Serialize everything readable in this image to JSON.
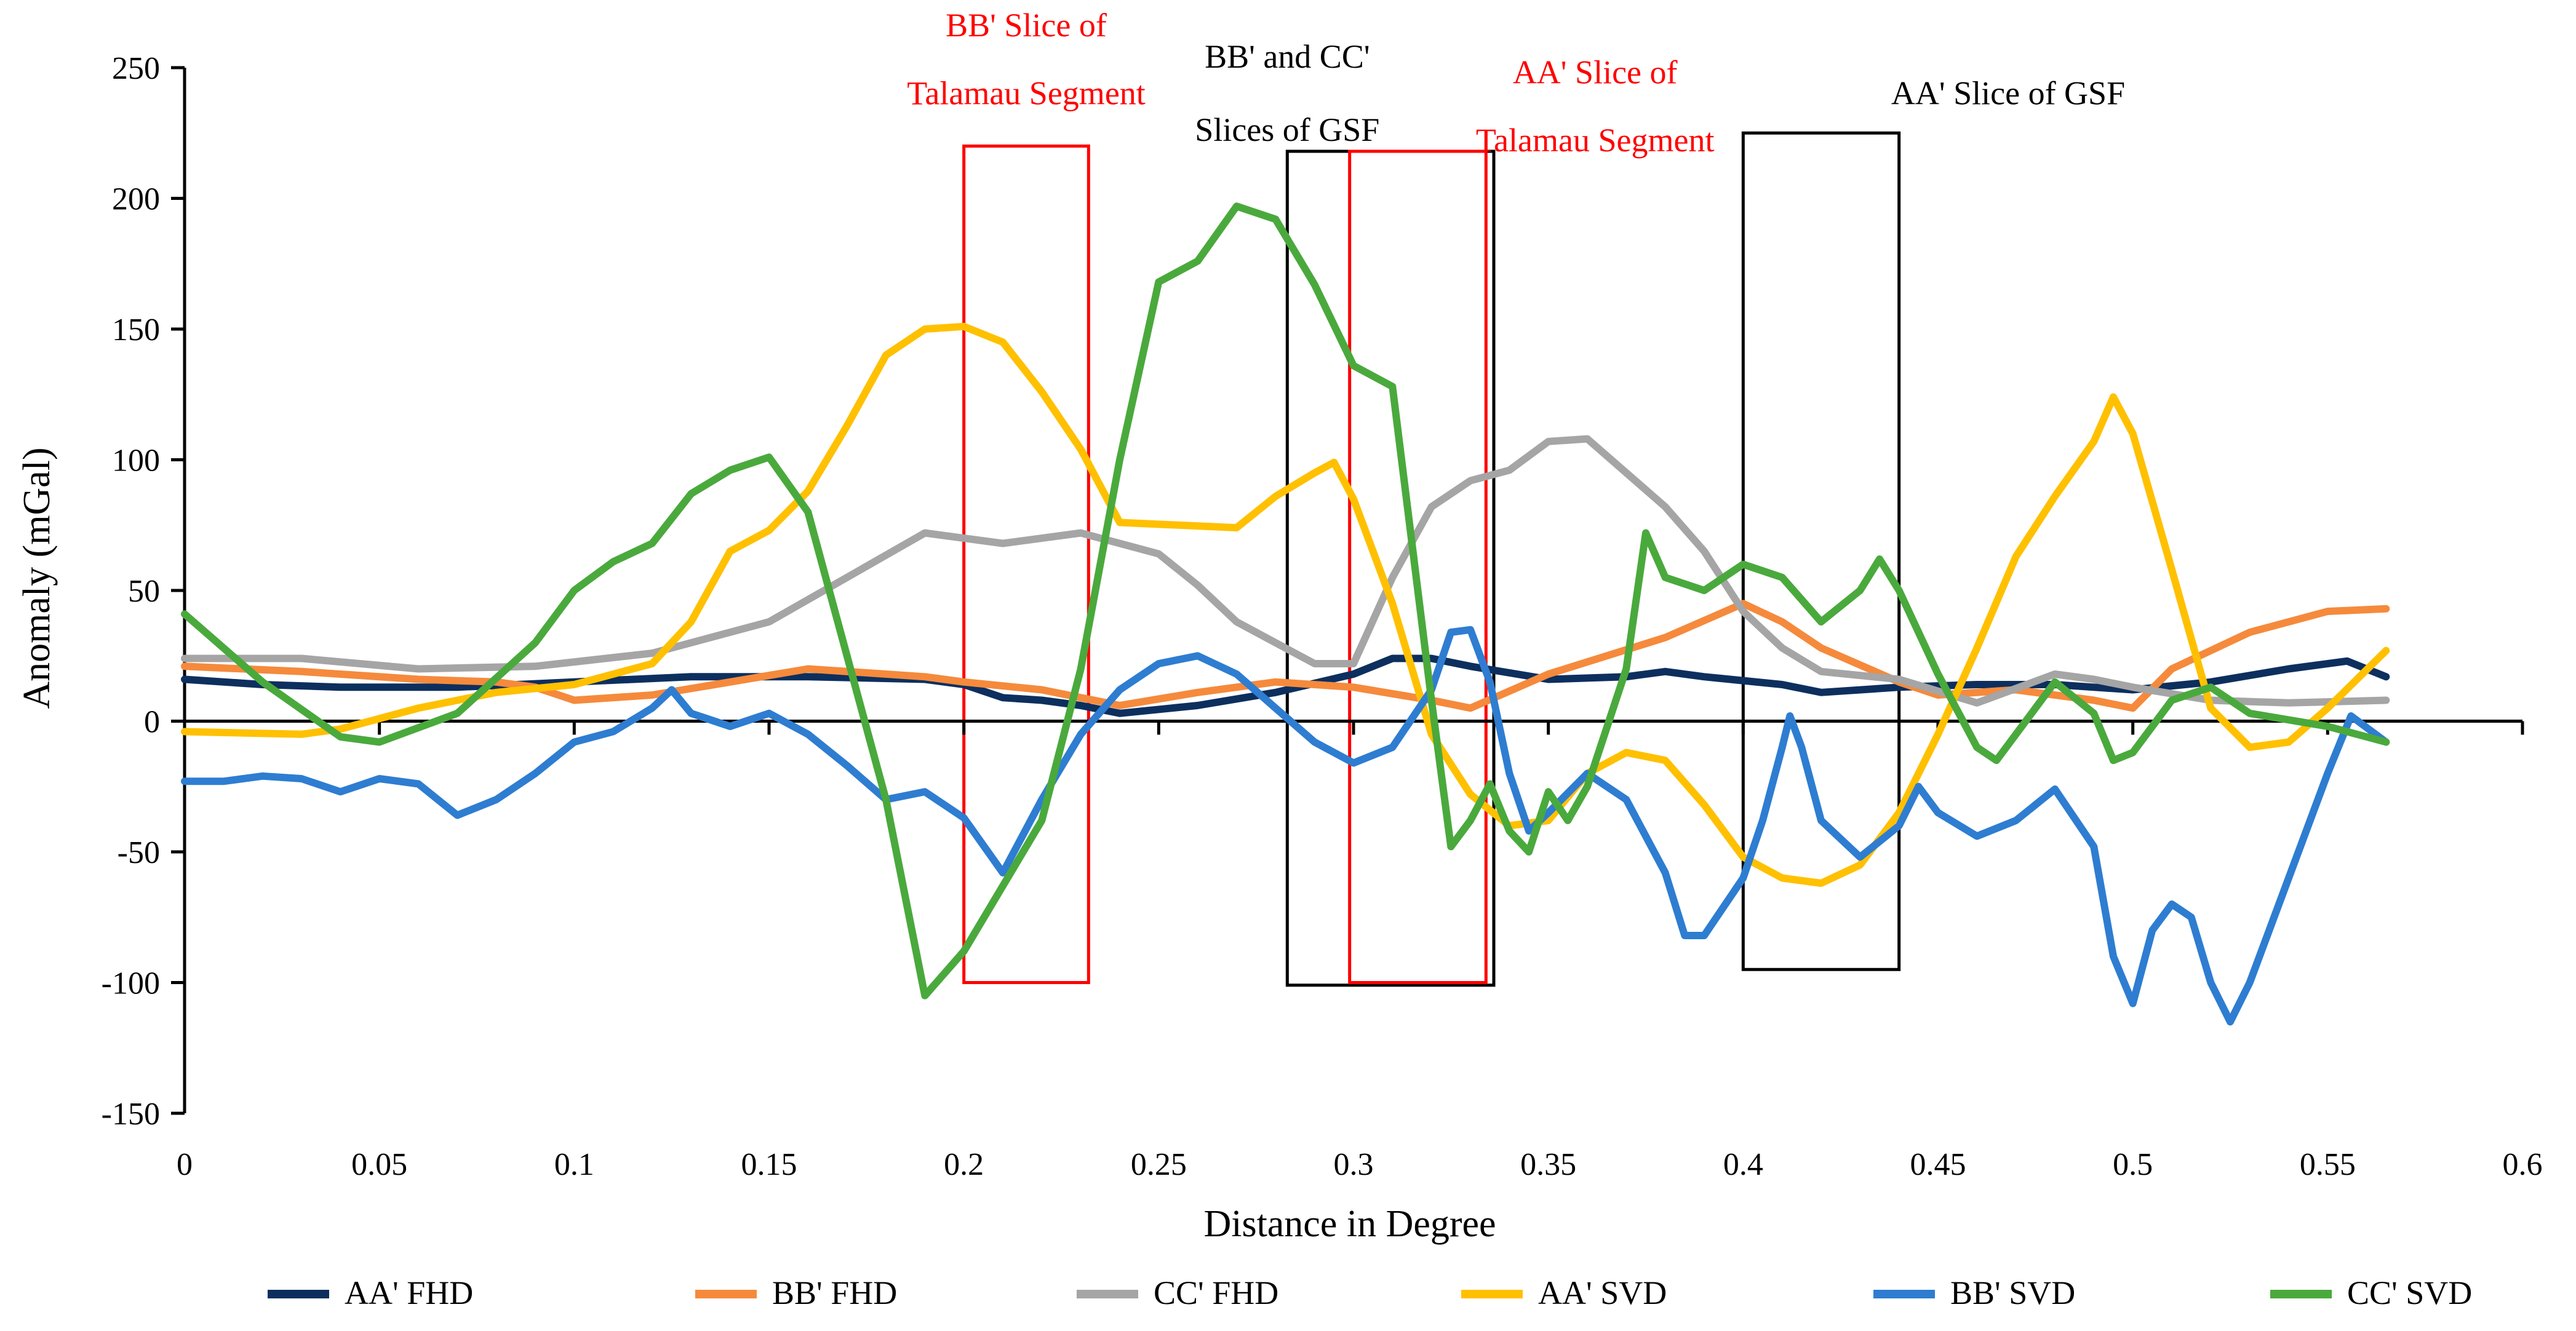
{
  "chart_data": {
    "type": "line",
    "title": "",
    "xlabel": "Distance in Degree",
    "ylabel": "Anomaly (mGal)",
    "xlim": [
      0,
      0.6
    ],
    "ylim": [
      -150,
      250
    ],
    "x_ticks": [
      0,
      0.05,
      0.1,
      0.15,
      0.2,
      0.25,
      0.3,
      0.35,
      0.4,
      0.45,
      0.5,
      0.55,
      0.6
    ],
    "x_tick_labels": [
      "0",
      "0.05",
      "0.1",
      "0.15",
      "0.2",
      "0.25",
      "0.3",
      "0.35",
      "0.4",
      "0.45",
      "0.5",
      "0.55",
      "0.6"
    ],
    "y_ticks": [
      -150,
      -100,
      -50,
      0,
      50,
      100,
      150,
      200,
      250
    ],
    "y_tick_labels": [
      "-150",
      "-100",
      "-50",
      "0",
      "50",
      "100",
      "150",
      "200",
      "250"
    ],
    "grid": false,
    "legend_position": "bottom",
    "series": [
      {
        "name": "AA' FHD",
        "color": "#0d2f5e",
        "points": [
          [
            0,
            16
          ],
          [
            0.02,
            14
          ],
          [
            0.04,
            13
          ],
          [
            0.07,
            13
          ],
          [
            0.1,
            15
          ],
          [
            0.13,
            17
          ],
          [
            0.16,
            17
          ],
          [
            0.19,
            16
          ],
          [
            0.2,
            14
          ],
          [
            0.21,
            9
          ],
          [
            0.22,
            8
          ],
          [
            0.23,
            6
          ],
          [
            0.24,
            3
          ],
          [
            0.26,
            6
          ],
          [
            0.28,
            11
          ],
          [
            0.3,
            18
          ],
          [
            0.31,
            24
          ],
          [
            0.32,
            24
          ],
          [
            0.33,
            21
          ],
          [
            0.35,
            16
          ],
          [
            0.37,
            17
          ],
          [
            0.38,
            19
          ],
          [
            0.39,
            17
          ],
          [
            0.41,
            14
          ],
          [
            0.42,
            11
          ],
          [
            0.44,
            13
          ],
          [
            0.46,
            14
          ],
          [
            0.48,
            14
          ],
          [
            0.49,
            13
          ],
          [
            0.5,
            12
          ],
          [
            0.52,
            15
          ],
          [
            0.54,
            20
          ],
          [
            0.555,
            23
          ],
          [
            0.565,
            17
          ]
        ]
      },
      {
        "name": "BB' FHD",
        "color": "#f58a3c",
        "points": [
          [
            0,
            21
          ],
          [
            0.03,
            19
          ],
          [
            0.06,
            16
          ],
          [
            0.08,
            15
          ],
          [
            0.09,
            13
          ],
          [
            0.1,
            8
          ],
          [
            0.12,
            10
          ],
          [
            0.14,
            15
          ],
          [
            0.16,
            20
          ],
          [
            0.18,
            18
          ],
          [
            0.19,
            17
          ],
          [
            0.2,
            15
          ],
          [
            0.22,
            12
          ],
          [
            0.24,
            6
          ],
          [
            0.26,
            11
          ],
          [
            0.28,
            15
          ],
          [
            0.3,
            13
          ],
          [
            0.32,
            8
          ],
          [
            0.33,
            5
          ],
          [
            0.35,
            18
          ],
          [
            0.38,
            32
          ],
          [
            0.4,
            45
          ],
          [
            0.41,
            38
          ],
          [
            0.42,
            28
          ],
          [
            0.44,
            15
          ],
          [
            0.45,
            10
          ],
          [
            0.47,
            12
          ],
          [
            0.49,
            8
          ],
          [
            0.5,
            5
          ],
          [
            0.51,
            20
          ],
          [
            0.53,
            34
          ],
          [
            0.55,
            42
          ],
          [
            0.565,
            43
          ]
        ]
      },
      {
        "name": "CC' FHD",
        "color": "#a5a5a5",
        "points": [
          [
            0,
            24
          ],
          [
            0.03,
            24
          ],
          [
            0.06,
            20
          ],
          [
            0.09,
            21
          ],
          [
            0.12,
            26
          ],
          [
            0.15,
            38
          ],
          [
            0.17,
            55
          ],
          [
            0.19,
            72
          ],
          [
            0.21,
            68
          ],
          [
            0.23,
            72
          ],
          [
            0.25,
            64
          ],
          [
            0.26,
            52
          ],
          [
            0.27,
            38
          ],
          [
            0.28,
            30
          ],
          [
            0.29,
            22
          ],
          [
            0.3,
            22
          ],
          [
            0.31,
            55
          ],
          [
            0.32,
            82
          ],
          [
            0.33,
            92
          ],
          [
            0.34,
            96
          ],
          [
            0.35,
            107
          ],
          [
            0.36,
            108
          ],
          [
            0.38,
            82
          ],
          [
            0.39,
            65
          ],
          [
            0.4,
            42
          ],
          [
            0.41,
            28
          ],
          [
            0.42,
            19
          ],
          [
            0.44,
            16
          ],
          [
            0.46,
            7
          ],
          [
            0.48,
            18
          ],
          [
            0.49,
            16
          ],
          [
            0.5,
            13
          ],
          [
            0.52,
            8
          ],
          [
            0.54,
            7
          ],
          [
            0.565,
            8
          ]
        ]
      },
      {
        "name": "AA' SVD",
        "color": "#ffc000",
        "points": [
          [
            0,
            -4
          ],
          [
            0.03,
            -5
          ],
          [
            0.04,
            -3
          ],
          [
            0.06,
            5
          ],
          [
            0.08,
            11
          ],
          [
            0.1,
            14
          ],
          [
            0.12,
            22
          ],
          [
            0.13,
            38
          ],
          [
            0.14,
            65
          ],
          [
            0.15,
            73
          ],
          [
            0.16,
            88
          ],
          [
            0.17,
            113
          ],
          [
            0.18,
            140
          ],
          [
            0.19,
            150
          ],
          [
            0.2,
            151
          ],
          [
            0.21,
            145
          ],
          [
            0.22,
            126
          ],
          [
            0.23,
            104
          ],
          [
            0.24,
            76
          ],
          [
            0.27,
            74
          ],
          [
            0.28,
            86
          ],
          [
            0.29,
            95
          ],
          [
            0.295,
            99
          ],
          [
            0.3,
            85
          ],
          [
            0.31,
            45
          ],
          [
            0.32,
            -5
          ],
          [
            0.33,
            -28
          ],
          [
            0.34,
            -40
          ],
          [
            0.35,
            -38
          ],
          [
            0.36,
            -20
          ],
          [
            0.37,
            -12
          ],
          [
            0.38,
            -15
          ],
          [
            0.39,
            -32
          ],
          [
            0.4,
            -52
          ],
          [
            0.41,
            -60
          ],
          [
            0.42,
            -62
          ],
          [
            0.43,
            -55
          ],
          [
            0.44,
            -35
          ],
          [
            0.45,
            -5
          ],
          [
            0.46,
            28
          ],
          [
            0.47,
            63
          ],
          [
            0.48,
            86
          ],
          [
            0.49,
            107
          ],
          [
            0.495,
            124
          ],
          [
            0.5,
            110
          ],
          [
            0.51,
            58
          ],
          [
            0.52,
            5
          ],
          [
            0.53,
            -10
          ],
          [
            0.54,
            -8
          ],
          [
            0.55,
            5
          ],
          [
            0.565,
            27
          ]
        ]
      },
      {
        "name": "BB' SVD",
        "color": "#2e7dd1",
        "points": [
          [
            0,
            -23
          ],
          [
            0.01,
            -23
          ],
          [
            0.02,
            -21
          ],
          [
            0.03,
            -22
          ],
          [
            0.04,
            -27
          ],
          [
            0.05,
            -22
          ],
          [
            0.06,
            -24
          ],
          [
            0.07,
            -36
          ],
          [
            0.08,
            -30
          ],
          [
            0.09,
            -20
          ],
          [
            0.1,
            -8
          ],
          [
            0.11,
            -4
          ],
          [
            0.12,
            5
          ],
          [
            0.125,
            12
          ],
          [
            0.13,
            3
          ],
          [
            0.14,
            -2
          ],
          [
            0.15,
            3
          ],
          [
            0.16,
            -5
          ],
          [
            0.17,
            -17
          ],
          [
            0.18,
            -30
          ],
          [
            0.19,
            -27
          ],
          [
            0.2,
            -37
          ],
          [
            0.21,
            -58
          ],
          [
            0.22,
            -30
          ],
          [
            0.23,
            -5
          ],
          [
            0.24,
            12
          ],
          [
            0.25,
            22
          ],
          [
            0.26,
            25
          ],
          [
            0.27,
            18
          ],
          [
            0.28,
            5
          ],
          [
            0.29,
            -8
          ],
          [
            0.3,
            -16
          ],
          [
            0.31,
            -10
          ],
          [
            0.32,
            12
          ],
          [
            0.325,
            34
          ],
          [
            0.33,
            35
          ],
          [
            0.335,
            15
          ],
          [
            0.34,
            -20
          ],
          [
            0.345,
            -42
          ],
          [
            0.35,
            -35
          ],
          [
            0.36,
            -20
          ],
          [
            0.37,
            -30
          ],
          [
            0.38,
            -58
          ],
          [
            0.385,
            -82
          ],
          [
            0.39,
            -82
          ],
          [
            0.4,
            -60
          ],
          [
            0.405,
            -38
          ],
          [
            0.41,
            -10
          ],
          [
            0.412,
            2
          ],
          [
            0.415,
            -10
          ],
          [
            0.42,
            -38
          ],
          [
            0.43,
            -52
          ],
          [
            0.44,
            -40
          ],
          [
            0.445,
            -25
          ],
          [
            0.45,
            -35
          ],
          [
            0.46,
            -44
          ],
          [
            0.47,
            -38
          ],
          [
            0.48,
            -26
          ],
          [
            0.49,
            -48
          ],
          [
            0.495,
            -90
          ],
          [
            0.5,
            -108
          ],
          [
            0.505,
            -80
          ],
          [
            0.51,
            -70
          ],
          [
            0.515,
            -75
          ],
          [
            0.52,
            -100
          ],
          [
            0.525,
            -115
          ],
          [
            0.53,
            -100
          ],
          [
            0.54,
            -60
          ],
          [
            0.55,
            -20
          ],
          [
            0.556,
            2
          ],
          [
            0.565,
            -8
          ]
        ]
      },
      {
        "name": "CC' SVD",
        "color": "#4aa93c",
        "points": [
          [
            0,
            41
          ],
          [
            0.02,
            15
          ],
          [
            0.04,
            -6
          ],
          [
            0.05,
            -8
          ],
          [
            0.07,
            3
          ],
          [
            0.09,
            30
          ],
          [
            0.1,
            50
          ],
          [
            0.11,
            61
          ],
          [
            0.12,
            68
          ],
          [
            0.13,
            87
          ],
          [
            0.14,
            96
          ],
          [
            0.15,
            101
          ],
          [
            0.16,
            80
          ],
          [
            0.17,
            25
          ],
          [
            0.18,
            -30
          ],
          [
            0.19,
            -105
          ],
          [
            0.2,
            -88
          ],
          [
            0.21,
            -63
          ],
          [
            0.22,
            -38
          ],
          [
            0.23,
            20
          ],
          [
            0.24,
            100
          ],
          [
            0.25,
            168
          ],
          [
            0.26,
            176
          ],
          [
            0.27,
            197
          ],
          [
            0.28,
            192
          ],
          [
            0.29,
            167
          ],
          [
            0.3,
            136
          ],
          [
            0.31,
            128
          ],
          [
            0.32,
            8
          ],
          [
            0.325,
            -48
          ],
          [
            0.33,
            -38
          ],
          [
            0.335,
            -24
          ],
          [
            0.34,
            -42
          ],
          [
            0.345,
            -50
          ],
          [
            0.35,
            -27
          ],
          [
            0.355,
            -38
          ],
          [
            0.36,
            -25
          ],
          [
            0.37,
            20
          ],
          [
            0.375,
            72
          ],
          [
            0.38,
            55
          ],
          [
            0.39,
            50
          ],
          [
            0.4,
            60
          ],
          [
            0.41,
            55
          ],
          [
            0.42,
            38
          ],
          [
            0.43,
            50
          ],
          [
            0.435,
            62
          ],
          [
            0.44,
            50
          ],
          [
            0.45,
            18
          ],
          [
            0.46,
            -10
          ],
          [
            0.465,
            -15
          ],
          [
            0.47,
            -5
          ],
          [
            0.48,
            15
          ],
          [
            0.49,
            3
          ],
          [
            0.495,
            -15
          ],
          [
            0.5,
            -12
          ],
          [
            0.51,
            8
          ],
          [
            0.52,
            13
          ],
          [
            0.53,
            3
          ],
          [
            0.55,
            -2
          ],
          [
            0.565,
            -8
          ]
        ]
      }
    ],
    "annotations": [
      {
        "name": "BB' Slice of Talamau Segment",
        "lines": [
          "BB' Slice of",
          "Talamau Segment"
        ],
        "color": "#ff0000",
        "box": {
          "x0": 0.2,
          "x1": 0.232,
          "y0": -100,
          "y1": 220
        },
        "text_x": 0.216,
        "text_y": [
          262,
          236
        ]
      },
      {
        "name": "BB' and CC' Slices of GSF",
        "lines": [
          "BB' and CC'",
          "Slices  of  GSF"
        ],
        "color": "#000000",
        "box": {
          "x0": 0.283,
          "x1": 0.336,
          "y0": -101,
          "y1": 218
        },
        "text_x": 0.283,
        "text_y": [
          250,
          222
        ]
      },
      {
        "name": "AA' Slice of Talamau Segment",
        "lines": [
          "AA' Slice of",
          "Talamau Segment"
        ],
        "color": "#ff0000",
        "box": {
          "x0": 0.299,
          "x1": 0.334,
          "y0": -100,
          "y1": 218
        },
        "text_x": 0.362,
        "text_y": [
          244,
          218
        ]
      },
      {
        "name": "AA' Slice of GSF",
        "lines": [
          "AA' Slice of GSF"
        ],
        "color": "#000000",
        "box": {
          "x0": 0.4,
          "x1": 0.44,
          "y0": -95,
          "y1": 225
        },
        "text_x": 0.468,
        "text_y": [
          236
        ]
      }
    ]
  }
}
